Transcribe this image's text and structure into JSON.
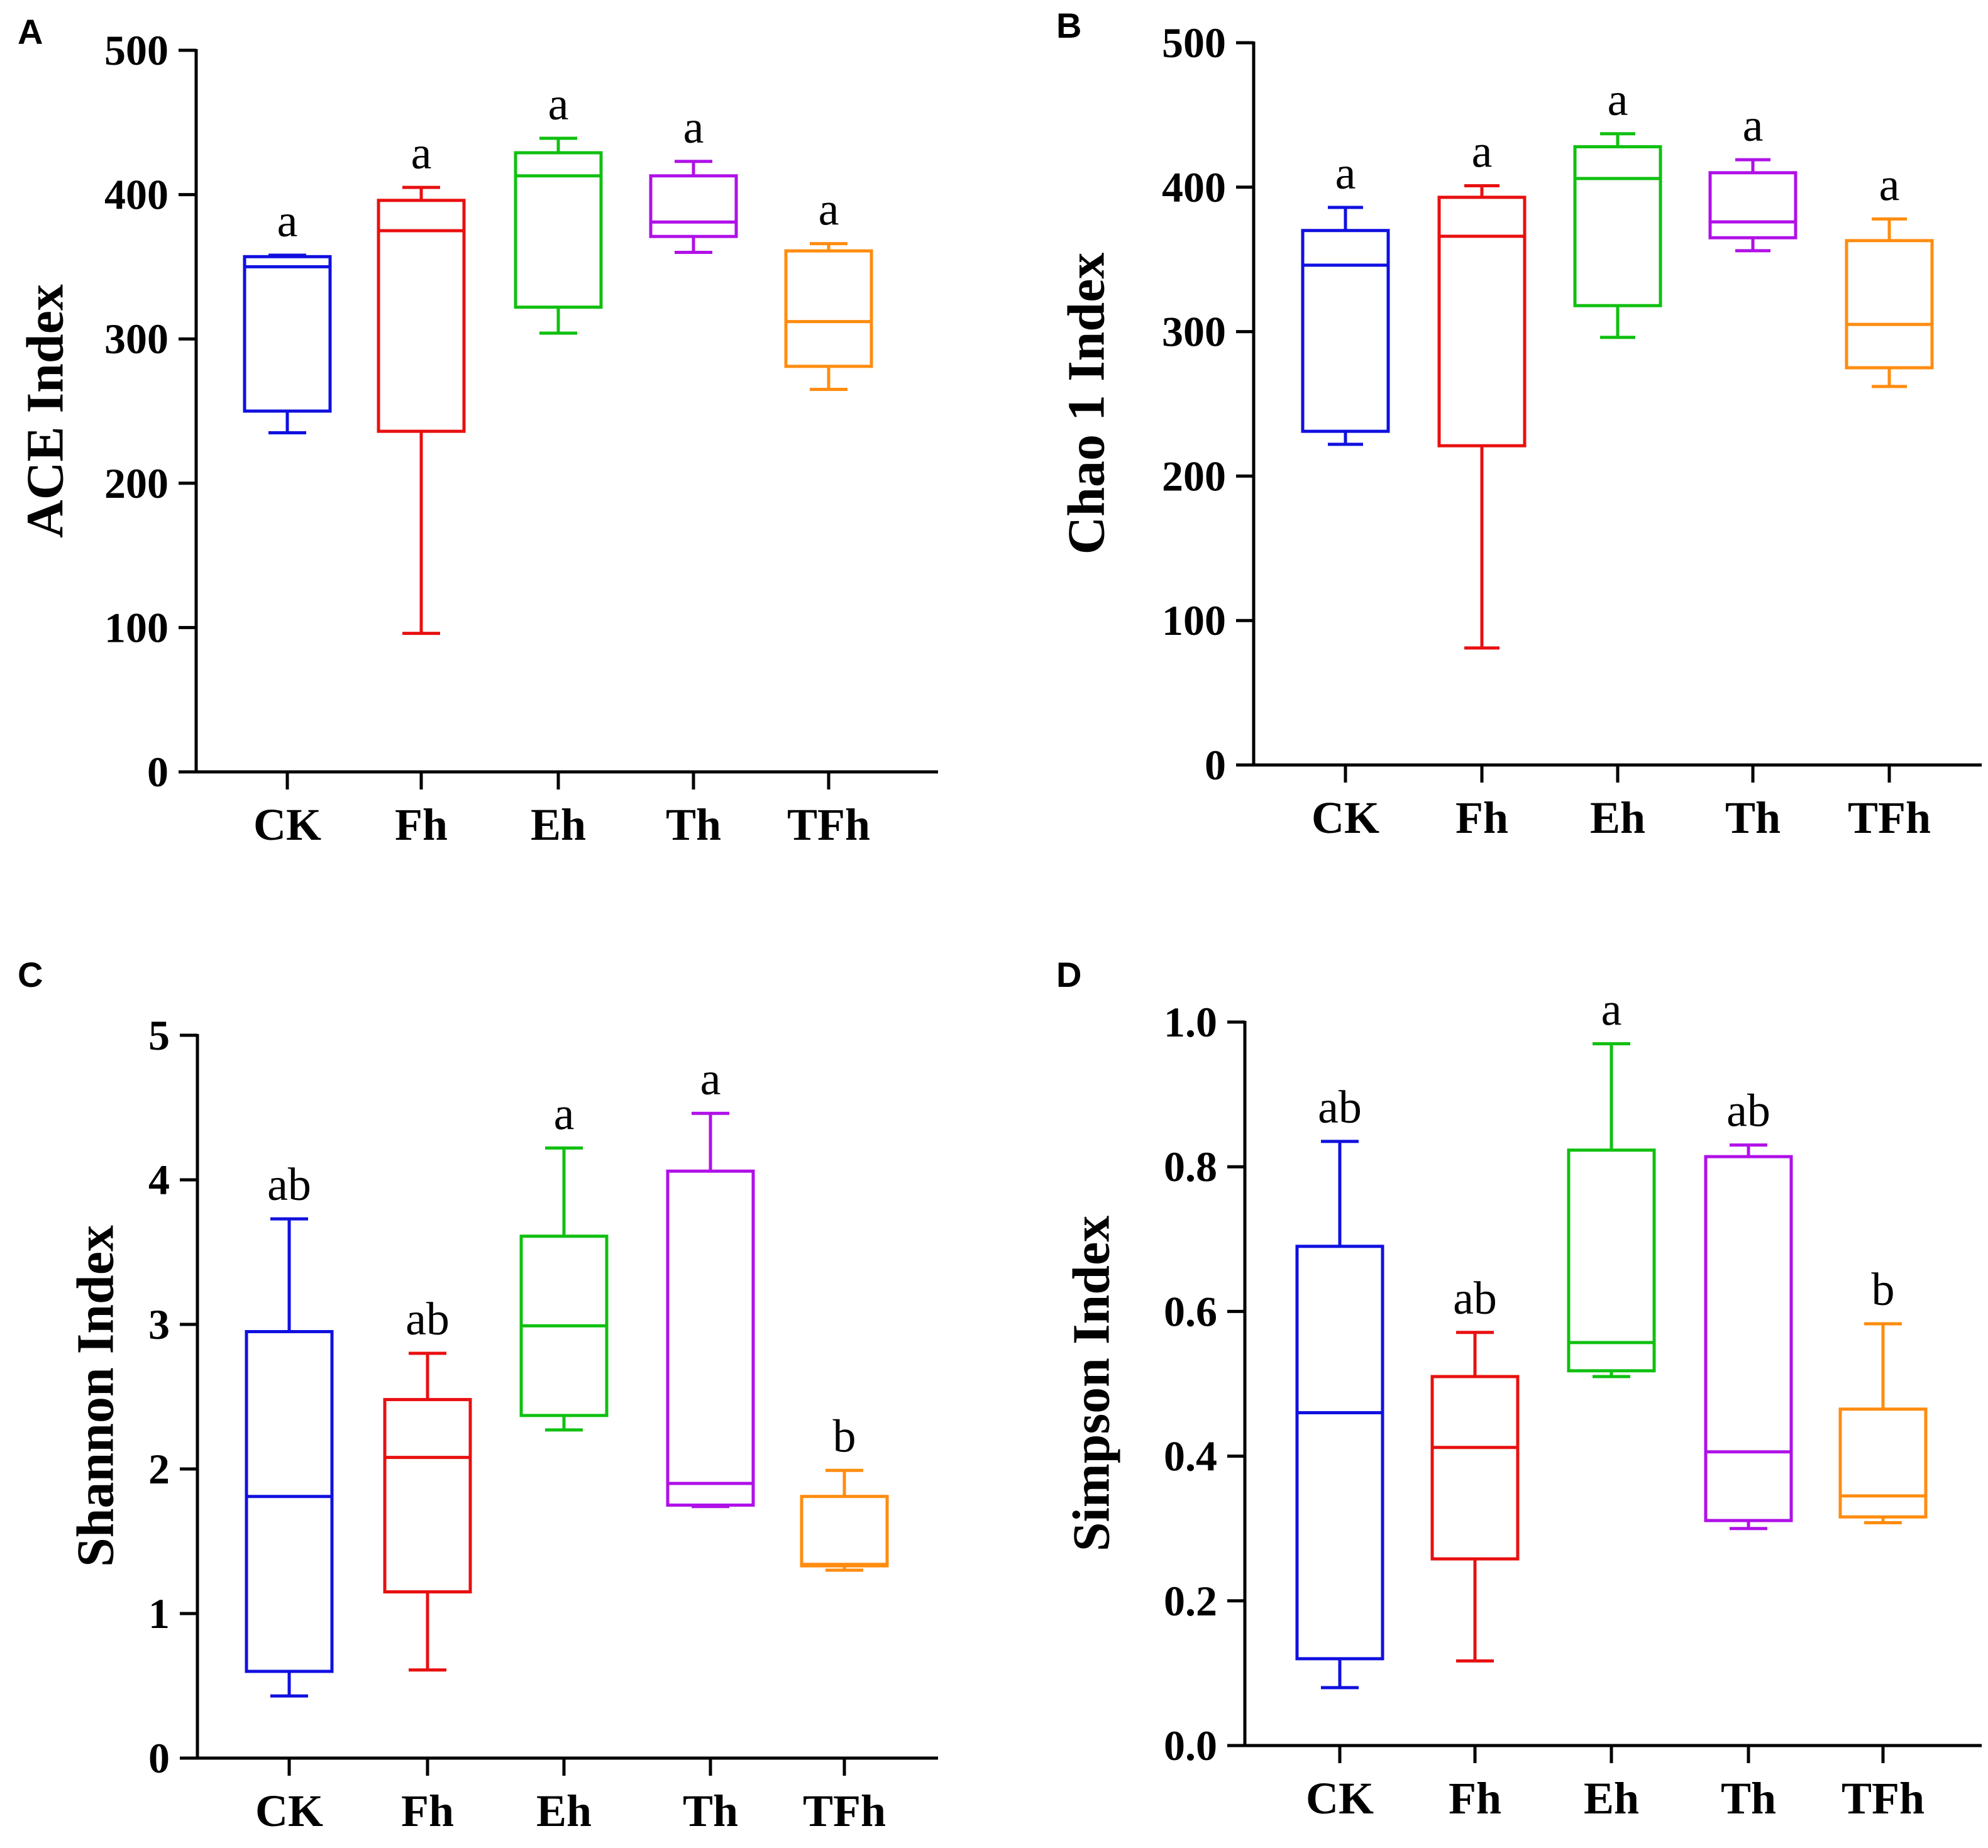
{
  "colors": {
    "CK": "#1010e0",
    "Fh": "#e81010",
    "Eh": "#10c010",
    "Th": "#b010e8",
    "TFh": "#ff8c10"
  },
  "chart_data": [
    {
      "panel": "A",
      "type": "box",
      "ylabel": "ACE Index",
      "ylim": [
        0,
        500
      ],
      "yticks": [
        "0",
        "100",
        "200",
        "300",
        "400",
        "500"
      ],
      "categories": [
        "CK",
        "Fh",
        "Eh",
        "Th",
        "TFh"
      ],
      "boxes": [
        {
          "min": 235,
          "q1": 250,
          "median": 350,
          "q3": 357,
          "max": 358,
          "letter": "a"
        },
        {
          "min": 96,
          "q1": 236,
          "median": 375,
          "q3": 396,
          "max": 405,
          "letter": "a"
        },
        {
          "min": 304,
          "q1": 322,
          "median": 413,
          "q3": 429,
          "max": 439,
          "letter": "a"
        },
        {
          "min": 360,
          "q1": 371,
          "median": 381,
          "q3": 413,
          "max": 423,
          "letter": "a"
        },
        {
          "min": 265,
          "q1": 281,
          "median": 312,
          "q3": 361,
          "max": 366,
          "letter": "a"
        }
      ]
    },
    {
      "panel": "B",
      "type": "box",
      "ylabel": "Chao 1 Index",
      "ylim": [
        0,
        500
      ],
      "yticks": [
        "0",
        "100",
        "200",
        "300",
        "400",
        "500"
      ],
      "categories": [
        "CK",
        "Fh",
        "Eh",
        "Th",
        "TFh"
      ],
      "boxes": [
        {
          "min": 222,
          "q1": 231,
          "median": 346,
          "q3": 370,
          "max": 386,
          "letter": "a"
        },
        {
          "min": 81,
          "q1": 221,
          "median": 366,
          "q3": 393,
          "max": 401,
          "letter": "a"
        },
        {
          "min": 296,
          "q1": 318,
          "median": 406,
          "q3": 428,
          "max": 437,
          "letter": "a"
        },
        {
          "min": 356,
          "q1": 365,
          "median": 376,
          "q3": 410,
          "max": 419,
          "letter": "a"
        },
        {
          "min": 262,
          "q1": 275,
          "median": 305,
          "q3": 363,
          "max": 378,
          "letter": "a"
        }
      ]
    },
    {
      "panel": "C",
      "type": "box",
      "ylabel": "Shannon Index",
      "ylim": [
        0,
        5
      ],
      "yticks": [
        "0",
        "1",
        "2",
        "3",
        "4",
        "5"
      ],
      "categories": [
        "CK",
        "Fh",
        "Eh",
        "Th",
        "TFh"
      ],
      "boxes": [
        {
          "min": 0.43,
          "q1": 0.6,
          "median": 1.81,
          "q3": 2.95,
          "max": 3.73,
          "letter": "ab"
        },
        {
          "min": 0.61,
          "q1": 1.15,
          "median": 2.08,
          "q3": 2.48,
          "max": 2.8,
          "letter": "ab"
        },
        {
          "min": 2.27,
          "q1": 2.37,
          "median": 2.99,
          "q3": 3.61,
          "max": 4.22,
          "letter": "a"
        },
        {
          "min": 1.74,
          "q1": 1.75,
          "median": 1.9,
          "q3": 4.06,
          "max": 4.46,
          "letter": "a"
        },
        {
          "min": 1.3,
          "q1": 1.33,
          "median": 1.34,
          "q3": 1.81,
          "max": 1.99,
          "letter": "b"
        }
      ]
    },
    {
      "panel": "D",
      "type": "box",
      "ylabel": "Simpson Index",
      "ylim": [
        0,
        1
      ],
      "yticks": [
        "0.0",
        "0.2",
        "0.4",
        "0.6",
        "0.8",
        "1.0"
      ],
      "categories": [
        "CK",
        "Fh",
        "Eh",
        "Th",
        "TFh"
      ],
      "boxes": [
        {
          "min": 0.08,
          "q1": 0.12,
          "median": 0.46,
          "q3": 0.69,
          "max": 0.835,
          "letter": "ab"
        },
        {
          "min": 0.117,
          "q1": 0.258,
          "median": 0.412,
          "q3": 0.51,
          "max": 0.571,
          "letter": "ab"
        },
        {
          "min": 0.51,
          "q1": 0.518,
          "median": 0.557,
          "q3": 0.823,
          "max": 0.97,
          "letter": "a"
        },
        {
          "min": 0.3,
          "q1": 0.311,
          "median": 0.406,
          "q3": 0.814,
          "max": 0.83,
          "letter": "ab"
        },
        {
          "min": 0.308,
          "q1": 0.316,
          "median": 0.345,
          "q3": 0.465,
          "max": 0.583,
          "letter": "b"
        }
      ]
    }
  ]
}
